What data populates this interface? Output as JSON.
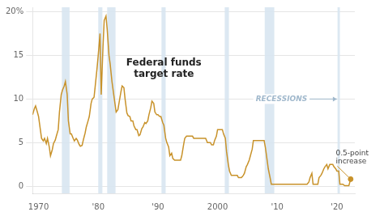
{
  "chart_data": {
    "type": "line",
    "x": [
      1969.0,
      1969.3,
      1969.5,
      1969.8,
      1970.0,
      1970.3,
      1970.5,
      1970.8,
      1971.0,
      1971.3,
      1971.5,
      1971.8,
      1972.0,
      1972.3,
      1972.5,
      1972.8,
      1973.0,
      1973.3,
      1973.5,
      1973.8,
      1974.0,
      1974.3,
      1974.5,
      1974.8,
      1975.0,
      1975.3,
      1975.5,
      1975.8,
      1976.0,
      1976.3,
      1976.5,
      1976.8,
      1977.0,
      1977.3,
      1977.5,
      1977.8,
      1978.0,
      1978.3,
      1978.5,
      1978.8,
      1979.0,
      1979.3,
      1979.5,
      1979.8,
      1980.0,
      1980.3,
      1980.5,
      1980.8,
      1981.0,
      1981.3,
      1981.5,
      1981.8,
      1982.0,
      1982.3,
      1982.5,
      1982.8,
      1983.0,
      1983.3,
      1983.5,
      1983.8,
      1984.0,
      1984.3,
      1984.5,
      1984.8,
      1985.0,
      1985.3,
      1985.5,
      1985.8,
      1986.0,
      1986.3,
      1986.5,
      1986.8,
      1987.0,
      1987.3,
      1987.5,
      1987.8,
      1988.0,
      1988.3,
      1988.5,
      1988.8,
      1989.0,
      1989.3,
      1989.5,
      1989.8,
      1990.0,
      1990.3,
      1990.5,
      1990.8,
      1991.0,
      1991.3,
      1991.5,
      1991.8,
      1992.0,
      1992.3,
      1992.5,
      1992.8,
      1993.0,
      1993.3,
      1993.5,
      1993.8,
      1994.0,
      1994.3,
      1994.5,
      1994.8,
      1995.0,
      1995.3,
      1995.5,
      1995.8,
      1996.0,
      1996.3,
      1996.5,
      1996.8,
      1997.0,
      1997.3,
      1997.5,
      1997.8,
      1998.0,
      1998.3,
      1998.5,
      1998.8,
      1999.0,
      1999.3,
      1999.5,
      1999.8,
      2000.0,
      2000.3,
      2000.5,
      2000.8,
      2001.0,
      2001.3,
      2001.5,
      2001.8,
      2002.0,
      2002.3,
      2002.5,
      2002.8,
      2003.0,
      2003.3,
      2003.5,
      2003.8,
      2004.0,
      2004.3,
      2004.5,
      2004.8,
      2005.0,
      2005.3,
      2005.5,
      2005.8,
      2006.0,
      2006.3,
      2006.5,
      2006.8,
      2007.0,
      2007.3,
      2007.5,
      2007.8,
      2008.0,
      2008.3,
      2008.5,
      2008.8,
      2009.0,
      2009.3,
      2009.5,
      2009.8,
      2010.0,
      2010.3,
      2010.5,
      2010.8,
      2011.0,
      2011.3,
      2011.5,
      2011.8,
      2012.0,
      2012.3,
      2012.5,
      2012.8,
      2013.0,
      2013.3,
      2013.5,
      2013.8,
      2014.0,
      2014.3,
      2014.5,
      2014.8,
      2015.0,
      2015.3,
      2015.5,
      2015.8,
      2016.0,
      2016.3,
      2016.5,
      2016.8,
      2017.0,
      2017.3,
      2017.5,
      2017.8,
      2018.0,
      2018.3,
      2018.5,
      2018.8,
      2019.0,
      2019.3,
      2019.5,
      2019.8,
      2020.0,
      2020.3,
      2020.5,
      2020.8,
      2021.0,
      2021.3,
      2021.5,
      2021.8,
      2022.0,
      2022.3
    ],
    "values": [
      8.2,
      8.9,
      9.2,
      8.5,
      8.0,
      6.5,
      5.5,
      5.2,
      5.5,
      4.9,
      5.5,
      4.5,
      3.5,
      4.2,
      4.9,
      5.3,
      5.8,
      6.5,
      8.5,
      10.5,
      11.0,
      11.5,
      12.0,
      10.5,
      7.5,
      6.0,
      6.0,
      5.5,
      5.2,
      5.5,
      5.3,
      4.8,
      4.6,
      4.7,
      5.3,
      6.1,
      6.8,
      7.5,
      8.0,
      9.5,
      10.0,
      10.2,
      11.5,
      13.5,
      15.0,
      17.5,
      10.5,
      16.0,
      19.0,
      19.5,
      18.0,
      15.0,
      14.0,
      12.0,
      11.0,
      9.5,
      8.5,
      8.8,
      9.6,
      10.8,
      11.5,
      11.3,
      10.0,
      8.4,
      8.1,
      8.0,
      7.5,
      7.5,
      6.9,
      6.5,
      6.5,
      5.8,
      5.9,
      6.6,
      6.8,
      7.3,
      7.2,
      7.5,
      8.2,
      9.0,
      9.75,
      9.5,
      8.5,
      8.2,
      8.2,
      8.0,
      8.0,
      7.3,
      7.0,
      5.5,
      5.0,
      4.5,
      3.5,
      3.8,
      3.2,
      3.0,
      3.0,
      3.0,
      3.0,
      3.0,
      3.5,
      4.75,
      5.5,
      5.75,
      5.75,
      5.75,
      5.75,
      5.75,
      5.5,
      5.5,
      5.5,
      5.5,
      5.5,
      5.5,
      5.5,
      5.5,
      5.5,
      5.0,
      5.0,
      5.0,
      4.75,
      4.75,
      5.25,
      5.75,
      6.5,
      6.5,
      6.5,
      6.5,
      6.0,
      5.5,
      4.0,
      2.5,
      1.75,
      1.25,
      1.25,
      1.25,
      1.25,
      1.25,
      1.0,
      1.0,
      1.0,
      1.25,
      1.5,
      2.25,
      2.5,
      3.0,
      3.5,
      4.25,
      5.25,
      5.25,
      5.25,
      5.25,
      5.25,
      5.25,
      5.25,
      5.25,
      4.5,
      3.0,
      2.0,
      1.0,
      0.25,
      0.25,
      0.25,
      0.25,
      0.25,
      0.25,
      0.25,
      0.25,
      0.25,
      0.25,
      0.25,
      0.25,
      0.25,
      0.25,
      0.25,
      0.25,
      0.25,
      0.25,
      0.25,
      0.25,
      0.25,
      0.25,
      0.25,
      0.25,
      0.25,
      0.5,
      1.0,
      1.5,
      0.25,
      0.25,
      0.25,
      0.25,
      1.0,
      1.25,
      1.5,
      2.0,
      2.25,
      2.5,
      2.0,
      2.5,
      2.5,
      2.5,
      2.25,
      2.0,
      1.75,
      1.75,
      0.25,
      0.25,
      0.25,
      0.08,
      0.08,
      0.08,
      0.08,
      0.83
    ],
    "color": "#c8922a",
    "xlim": [
      1969.0,
      2023.0
    ],
    "xticks": [
      1970,
      {
        "value": 1980,
        "label": "'80"
      },
      {
        "value": 1990,
        "label": "'90"
      },
      2000,
      {
        "value": 2010,
        "label": "'10"
      },
      {
        "value": 2020,
        "label": "'20"
      }
    ],
    "ylim": [
      -0.8,
      20.5
    ],
    "yticks": [
      0,
      5,
      10,
      15,
      {
        "value": 20,
        "label": "20%"
      }
    ],
    "grid": true,
    "highlight": {
      "x": 2022.3,
      "y": 0.83,
      "color": "#c8922a",
      "marker": "circle"
    },
    "bands": {
      "color": "#d6e4f0",
      "ranges": [
        [
          1973.9,
          1975.2
        ],
        [
          1980.0,
          1980.7
        ],
        [
          1981.5,
          1982.9
        ],
        [
          1990.6,
          1991.3
        ],
        [
          2001.2,
          2001.9
        ],
        [
          2007.9,
          2009.5
        ],
        [
          2020.1,
          2020.5
        ]
      ]
    },
    "annotations": [
      {
        "text": "Federal funds\ntarget rate",
        "x": 1991,
        "y": 13.5,
        "color": "#222222"
      },
      {
        "text": "RECESSIONS",
        "x": 2010.7,
        "y": 10,
        "color": "#a0b8cc",
        "arrow": [
          2007.7,
          2020
        ]
      },
      {
        "text": "0.5-point\nincrease",
        "x": 2019.8,
        "y": 3.33,
        "color": "#444444",
        "target": [
          2022.3,
          0.83
        ]
      }
    ]
  }
}
